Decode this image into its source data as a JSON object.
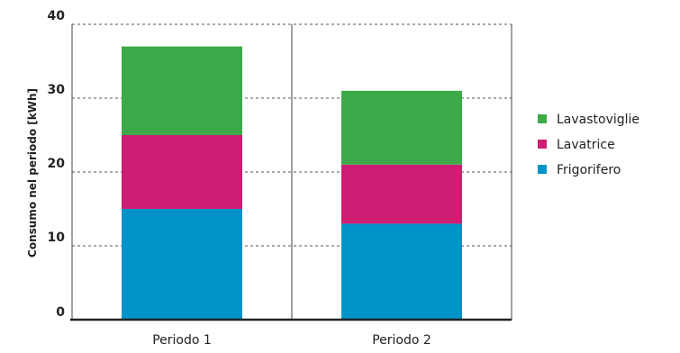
{
  "chart_data": {
    "type": "bar",
    "stacked": true,
    "categories": [
      "Periodo 1",
      "Periodo 2"
    ],
    "series": [
      {
        "name": "Frigorifero",
        "color": "#0093C9",
        "values": [
          15,
          13
        ]
      },
      {
        "name": "Lavatrice",
        "color": "#CC1E72",
        "values": [
          10,
          8
        ]
      },
      {
        "name": "Lavastoviglie",
        "color": "#3DAA49",
        "values": [
          12,
          10
        ]
      }
    ],
    "xlabel": "",
    "ylabel": "Consumo nel periodo [kWh]",
    "ylim": [
      0,
      40
    ],
    "yticks": [
      "0",
      "10",
      "20",
      "30",
      "40"
    ],
    "grid": "horizontal-dashed",
    "legend_position": "right",
    "legend_order": [
      "Lavastoviglie",
      "Lavatrice",
      "Frigorifero"
    ]
  }
}
